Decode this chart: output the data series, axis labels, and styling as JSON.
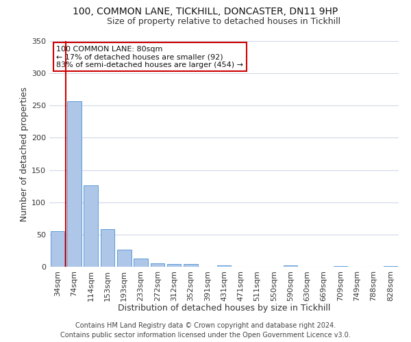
{
  "title": "100, COMMON LANE, TICKHILL, DONCASTER, DN11 9HP",
  "subtitle": "Size of property relative to detached houses in Tickhill",
  "xlabel": "Distribution of detached houses by size in Tickhill",
  "ylabel": "Number of detached properties",
  "bar_labels": [
    "34sqm",
    "74sqm",
    "114sqm",
    "153sqm",
    "193sqm",
    "233sqm",
    "272sqm",
    "312sqm",
    "352sqm",
    "391sqm",
    "431sqm",
    "471sqm",
    "511sqm",
    "550sqm",
    "590sqm",
    "630sqm",
    "669sqm",
    "709sqm",
    "749sqm",
    "788sqm",
    "828sqm"
  ],
  "bar_values": [
    55,
    257,
    126,
    58,
    27,
    13,
    5,
    4,
    4,
    0,
    2,
    0,
    0,
    0,
    2,
    0,
    0,
    1,
    0,
    0,
    1
  ],
  "bar_color": "#aec6e8",
  "bar_edge_color": "#5b9bd5",
  "vline_x": 0.5,
  "vline_color": "#cc0000",
  "ylim": [
    0,
    350
  ],
  "yticks": [
    0,
    50,
    100,
    150,
    200,
    250,
    300,
    350
  ],
  "annotation_box_text": "100 COMMON LANE: 80sqm\n← 17% of detached houses are smaller (92)\n83% of semi-detached houses are larger (454) →",
  "annotation_box_color": "#ffffff",
  "annotation_box_edge_color": "#cc0000",
  "footer_line1": "Contains HM Land Registry data © Crown copyright and database right 2024.",
  "footer_line2": "Contains public sector information licensed under the Open Government Licence v3.0.",
  "background_color": "#ffffff",
  "grid_color": "#d0d8e8",
  "title_fontsize": 10,
  "subtitle_fontsize": 9,
  "xlabel_fontsize": 9,
  "ylabel_fontsize": 9,
  "tick_fontsize": 8,
  "annot_fontsize": 8,
  "footer_fontsize": 7
}
